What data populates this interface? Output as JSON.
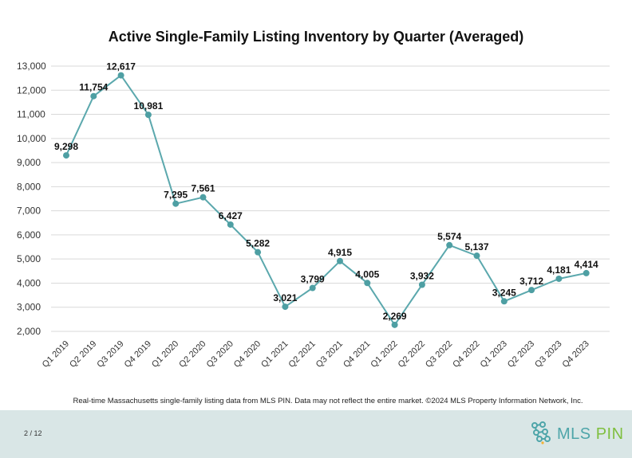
{
  "chart_data": {
    "type": "line",
    "title": "Active Single-Family Listing Inventory by Quarter (Averaged)",
    "xlabel": "",
    "ylabel": "",
    "categories": [
      "Q1 2019",
      "Q2 2019",
      "Q3 2019",
      "Q4 2019",
      "Q1 2020",
      "Q2 2020",
      "Q3 2020",
      "Q4 2020",
      "Q1 2021",
      "Q2 2021",
      "Q3 2021",
      "Q4 2021",
      "Q1 2022",
      "Q2 2022",
      "Q3 2022",
      "Q4 2022",
      "Q1 2023",
      "Q2 2023",
      "Q3 2023",
      "Q4 2023"
    ],
    "series": [
      {
        "values": [
          9298,
          11754,
          12617,
          10981,
          7295,
          7561,
          6427,
          5282,
          3021,
          3799,
          4915,
          4005,
          2269,
          3932,
          5574,
          5137,
          3245,
          3712,
          4181,
          4414
        ],
        "labels": [
          "9,298",
          "11,754",
          "12,617",
          "10,981",
          "7,295",
          "7,561",
          "6,427",
          "5,282",
          "3,021",
          "3,799",
          "4,915",
          "4,005",
          "2,269",
          "3,932",
          "5,574",
          "5,137",
          "3,245",
          "3,712",
          "4,181",
          "4,414"
        ]
      }
    ],
    "yticks": [
      "2,000",
      "3,000",
      "4,000",
      "5,000",
      "6,000",
      "7,000",
      "8,000",
      "9,000",
      "10,000",
      "11,000",
      "12,000",
      "13,000"
    ],
    "ylim": [
      2000,
      13000
    ],
    "grid": true,
    "legend": "none",
    "line_color": "#5ba8ad",
    "marker_color": "#4e9fa3"
  },
  "footnote": "Real-time Massachusetts single-family listing data from MLS PIN. Data may not reflect the entire market. ©2024 MLS Property Information Network, Inc.",
  "footer": {
    "page_number": "2 / 12",
    "brand": {
      "name_main": "MLS",
      "name_accent": "PIN",
      "icon": "mls-pin-logo-icon"
    },
    "background_color": "#d9e6e6"
  }
}
